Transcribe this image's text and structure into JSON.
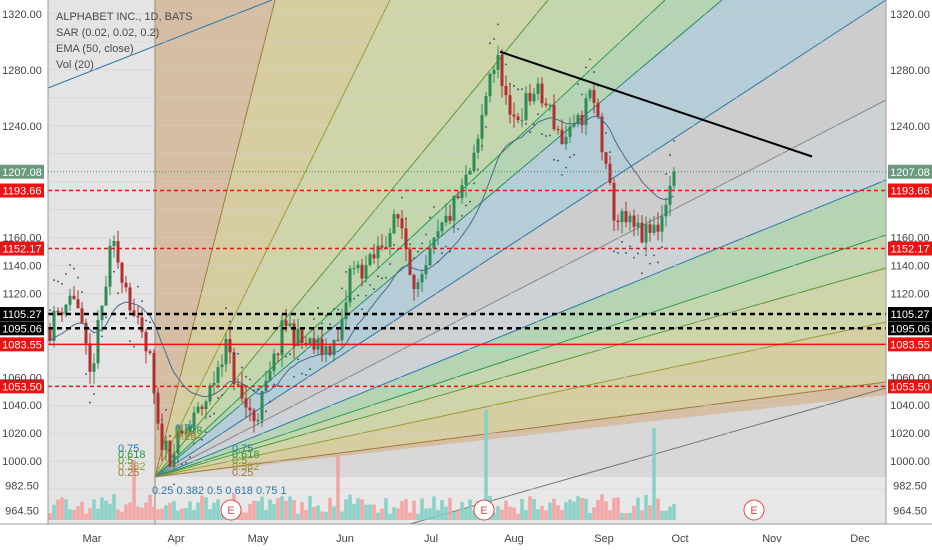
{
  "legend": {
    "title": "ALPHABET INC., 1D, BATS",
    "sar": "SAR (0.02, 0.02, 0.2)",
    "ema": "EMA (50, close)",
    "vol": "Vol (20)"
  },
  "chart_data": {
    "type": "candlestick",
    "ylim": [
      955,
      1330
    ],
    "y_ticks": [
      "1320.00",
      "1280.00",
      "1240.00",
      "1160.00",
      "1140.00",
      "1120.00",
      "1060.00",
      "1040.00",
      "1020.00",
      "1000.00",
      "982.50",
      "964.50"
    ],
    "x_labels": [
      "Mar",
      "Apr",
      "May",
      "Jun",
      "Jul",
      "Aug",
      "Sep",
      "Oct",
      "Nov",
      "Dec"
    ],
    "horizontal_levels": [
      {
        "label": "1207.08",
        "value": 1207.08,
        "style": "dotted-teal",
        "color": "#4a8a6a"
      },
      {
        "label": "1193.66",
        "value": 1193.66,
        "style": "dashed-red",
        "color": "#ee1111"
      },
      {
        "label": "1152.17",
        "value": 1152.17,
        "style": "dashed-red",
        "color": "#ee1111"
      },
      {
        "label": "1105.27",
        "value": 1105.27,
        "style": "dashed-black",
        "color": "#000000"
      },
      {
        "label": "1095.06",
        "value": 1095.06,
        "style": "dashed-black",
        "color": "#000000"
      },
      {
        "label": "1083.55",
        "value": 1083.55,
        "style": "solid-red",
        "color": "#ee1111"
      },
      {
        "label": "1053.50",
        "value": 1053.5,
        "style": "dashed-red",
        "color": "#ee1111"
      }
    ],
    "trendline": {
      "from": {
        "x": "Jul",
        "y": 1293
      },
      "to": {
        "x": "Nov",
        "y": 1218
      }
    },
    "fib_ratios": [
      "0.75",
      "0.618",
      "0.5",
      "0.382",
      "0.25"
    ],
    "fib_bottom_labels": "0.25 0.382 0.5 0.618 0.75 1",
    "earnings_markers": [
      "E",
      "E",
      "E"
    ],
    "colors": {
      "up": "#26a69a",
      "down": "#ef5350",
      "volume_up": "#7fcfc4",
      "volume_down": "#f2a09e"
    }
  }
}
